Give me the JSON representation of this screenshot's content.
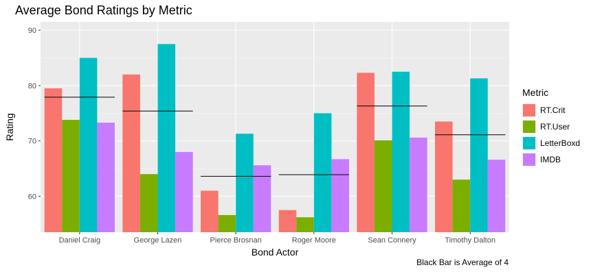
{
  "chart_data": {
    "type": "bar",
    "title": "Average Bond Ratings by Metric",
    "xlabel": "Bond Actor",
    "ylabel": "Rating",
    "ylim": [
      53.5,
      91.5
    ],
    "yticks": [
      60,
      70,
      80,
      90
    ],
    "grid": true,
    "legend_title": "Metric",
    "legend_position": "right",
    "caption": "Black Bar is Average of 4",
    "categories": [
      "Daniel Craig",
      "George Lazen",
      "Pierce Brosnan",
      "Roger Moore",
      "Sean Connery",
      "Timothy Dalton"
    ],
    "series": [
      {
        "name": "RT.Crit",
        "color": "#F8766D",
        "values": [
          79.5,
          82.0,
          61.0,
          57.5,
          82.3,
          73.5
        ]
      },
      {
        "name": "RT.User",
        "color": "#7CAE00",
        "values": [
          73.8,
          64.0,
          56.6,
          56.2,
          70.1,
          63.0
        ]
      },
      {
        "name": "LetterBoxd",
        "color": "#00BFC4",
        "values": [
          85.0,
          87.5,
          71.3,
          75.0,
          82.5,
          81.3
        ]
      },
      {
        "name": "IMDB",
        "color": "#C77CFF",
        "values": [
          73.3,
          68.0,
          65.6,
          66.7,
          70.6,
          66.6
        ]
      }
    ],
    "averages": [
      77.9,
      75.4,
      63.6,
      63.9,
      76.3,
      71.1
    ]
  }
}
